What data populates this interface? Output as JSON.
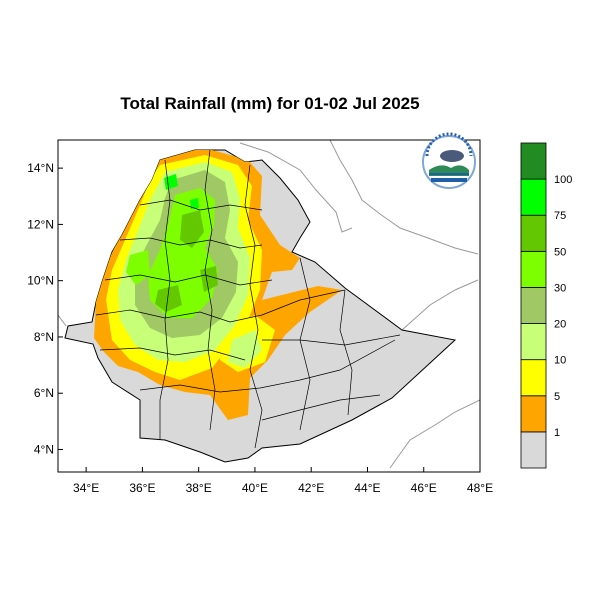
{
  "title": "Total Rainfall (mm) for 01-02 Jul 2025",
  "map": {
    "lon_range": [
      33,
      48
    ],
    "lat_range": [
      3.2,
      15
    ],
    "x_ticks": [
      {
        "value": 34,
        "label": "34°E"
      },
      {
        "value": 36,
        "label": "36°E"
      },
      {
        "value": 38,
        "label": "38°E"
      },
      {
        "value": 40,
        "label": "40°E"
      },
      {
        "value": 42,
        "label": "42°E"
      },
      {
        "value": 44,
        "label": "44°E"
      },
      {
        "value": 46,
        "label": "46°E"
      },
      {
        "value": 48,
        "label": "48°E"
      }
    ],
    "y_ticks": [
      {
        "value": 14,
        "label": "14°N"
      },
      {
        "value": 12,
        "label": "12°N"
      },
      {
        "value": 10,
        "label": "10°N"
      },
      {
        "value": 8,
        "label": "8°N"
      },
      {
        "value": 6,
        "label": "6°N"
      },
      {
        "value": 4,
        "label": "4°N"
      }
    ],
    "land_color": "#d9d9d9"
  },
  "legend": {
    "bins": [
      {
        "color": "#d9d9d9",
        "label": "1"
      },
      {
        "color": "#ffa500",
        "label": "5"
      },
      {
        "color": "#ffff00",
        "label": "10"
      },
      {
        "color": "#c8ff78",
        "label": "20"
      },
      {
        "color": "#a0c864",
        "label": "30"
      },
      {
        "color": "#7dff00",
        "label": "50"
      },
      {
        "color": "#64c800",
        "label": "75"
      },
      {
        "color": "#00ff00",
        "label": "100"
      },
      {
        "color": "#228b22",
        "label": ""
      }
    ]
  }
}
